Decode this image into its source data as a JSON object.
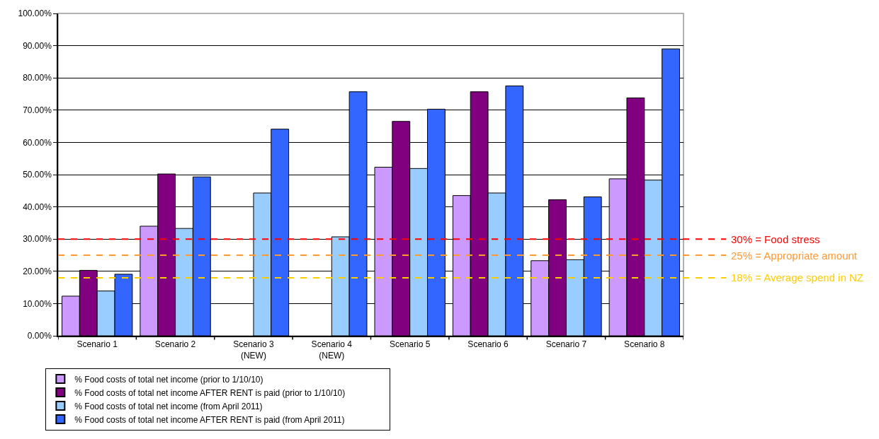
{
  "chart_data": {
    "type": "bar",
    "categories": [
      "Scenario 1",
      "Scenario 2",
      "Scenario 3\n(NEW)",
      "Scenario 4\n(NEW)",
      "Scenario 5",
      "Scenario 6",
      "Scenario 7",
      "Scenario 8"
    ],
    "series": [
      {
        "name": "% Food costs of total net income (prior to 1/10/10)",
        "color": "#cc99ff",
        "values": [
          12.3,
          34.0,
          null,
          null,
          52.3,
          43.5,
          23.3,
          48.7
        ]
      },
      {
        "name": "% Food costs of total net income AFTER RENT is paid (prior to 1/10/10)",
        "color": "#800080",
        "values": [
          20.3,
          50.2,
          null,
          null,
          66.5,
          75.7,
          42.2,
          73.8
        ]
      },
      {
        "name": "% Food costs of total net income (from April 2011)",
        "color": "#99ccff",
        "values": [
          13.9,
          33.3,
          44.3,
          30.7,
          51.9,
          44.3,
          23.6,
          48.3
        ]
      },
      {
        "name": "% Food costs of total net income AFTER RENT is paid (from April 2011)",
        "color": "#3366ff",
        "values": [
          19.1,
          49.3,
          64.1,
          75.7,
          70.3,
          77.5,
          43.1,
          89.0
        ]
      }
    ],
    "ylim": [
      0,
      100
    ],
    "yticks": [
      {
        "value": 0,
        "label": "0.00%"
      },
      {
        "value": 10,
        "label": "10.00%"
      },
      {
        "value": 20,
        "label": "20.00%"
      },
      {
        "value": 30,
        "label": "30.00%"
      },
      {
        "value": 40,
        "label": "40.00%"
      },
      {
        "value": 50,
        "label": "50.00%"
      },
      {
        "value": 60,
        "label": "60.00%"
      },
      {
        "value": 70,
        "label": "70.00%"
      },
      {
        "value": 80,
        "label": "80.00%"
      },
      {
        "value": 90,
        "label": "90.00%"
      },
      {
        "value": 100,
        "label": "100.00%"
      }
    ],
    "ref_lines": [
      {
        "axis": "y",
        "value": 30,
        "label": "30% = Food stress",
        "color": "#ff0000",
        "line_style": "dashed"
      },
      {
        "axis": "y",
        "value": 25,
        "label": "25% = Appropriate amount",
        "color": "#ff9933",
        "line_style": "dashed"
      },
      {
        "axis": "y",
        "value": 18,
        "label": "18% = Average spend in NZ",
        "color": "#ffcc00",
        "line_style": "dashed"
      }
    ],
    "grid": "y",
    "legend": "bottom"
  }
}
